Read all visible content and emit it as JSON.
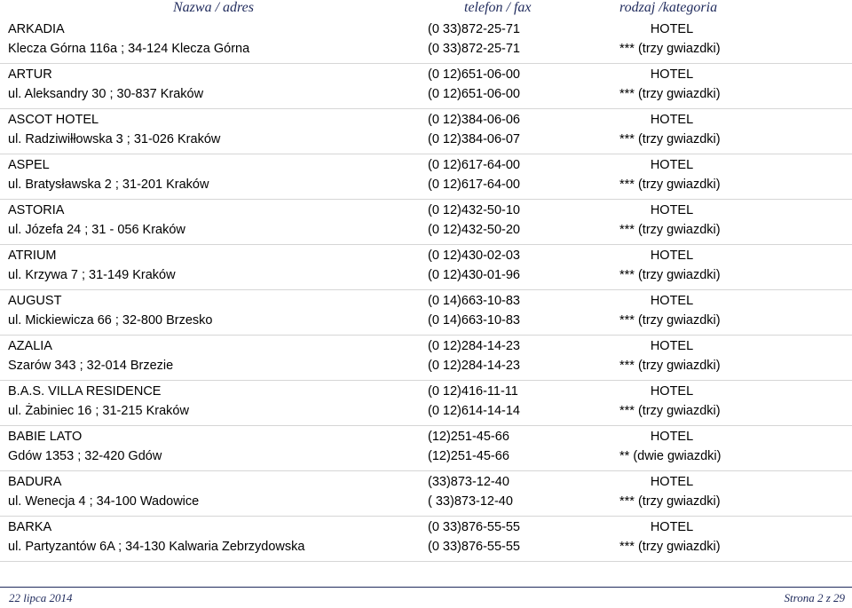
{
  "header": {
    "name": "Nazwa / adres",
    "phone": "telefon / fax",
    "category": "rodzaj /kategoria"
  },
  "entries": [
    {
      "name": "ARKADIA",
      "address": "Klecza Górna 116a ;  34-124 Klecza Górna",
      "phone": "(0 33)872-25-71",
      "fax": "(0 33)872-25-71",
      "type": "HOTEL",
      "category": "*** (trzy gwiazdki)"
    },
    {
      "name": "ARTUR",
      "address": "ul. Aleksandry 30 ;  30-837 Kraków",
      "phone": "(0 12)651-06-00",
      "fax": "(0 12)651-06-00",
      "type": "HOTEL",
      "category": "*** (trzy gwiazdki)"
    },
    {
      "name": "ASCOT HOTEL",
      "address": "ul. Radziwiłłowska 3 ;  31-026 Kraków",
      "phone": "(0 12)384-06-06",
      "fax": "(0 12)384-06-07",
      "type": "HOTEL",
      "category": "*** (trzy gwiazdki)"
    },
    {
      "name": "ASPEL",
      "address": "ul. Bratysławska 2 ;  31-201 Kraków",
      "phone": "(0 12)617-64-00",
      "fax": "(0 12)617-64-00",
      "type": "HOTEL",
      "category": "*** (trzy gwiazdki)"
    },
    {
      "name": "ASTORIA",
      "address": "ul. Józefa 24 ;  31 - 056 Kraków",
      "phone": "(0 12)432-50-10",
      "fax": "(0 12)432-50-20",
      "type": "HOTEL",
      "category": "*** (trzy gwiazdki)"
    },
    {
      "name": "ATRIUM",
      "address": "ul. Krzywa 7 ;  31-149 Kraków",
      "phone": "(0 12)430-02-03",
      "fax": "(0 12)430-01-96",
      "type": "HOTEL",
      "category": "*** (trzy gwiazdki)"
    },
    {
      "name": "AUGUST",
      "address": "ul. Mickiewicza 66 ;  32-800 Brzesko",
      "phone": "(0 14)663-10-83",
      "fax": "(0 14)663-10-83",
      "type": "HOTEL",
      "category": "*** (trzy gwiazdki)"
    },
    {
      "name": "AZALIA",
      "address": "Szarów 343 ;  32-014 Brzezie",
      "phone": "(0 12)284-14-23",
      "fax": "(0 12)284-14-23",
      "type": "HOTEL",
      "category": "*** (trzy gwiazdki)"
    },
    {
      "name": "B.A.S. VILLA RESIDENCE",
      "address": "ul. Żabiniec 16 ;  31-215 Kraków",
      "phone": "(0 12)416-11-11",
      "fax": "(0 12)614-14-14",
      "type": "HOTEL",
      "category": "*** (trzy gwiazdki)"
    },
    {
      "name": "BABIE LATO",
      "address": "Gdów 1353 ;  32-420 Gdów",
      "phone": "(12)251-45-66",
      "fax": "(12)251-45-66",
      "type": "HOTEL",
      "category": "** (dwie gwiazdki)"
    },
    {
      "name": "BADURA",
      "address": "ul. Wenecja 4 ;  34-100 Wadowice",
      "phone": "(33)873-12-40",
      "fax": "( 33)873-12-40",
      "type": "HOTEL",
      "category": "*** (trzy gwiazdki)"
    },
    {
      "name": "BARKA",
      "address": "ul. Partyzantów 6A ;  34-130 Kalwaria Zebrzydowska",
      "phone": "(0 33)876-55-55",
      "fax": "(0 33)876-55-55",
      "type": "HOTEL",
      "category": "*** (trzy gwiazdki)"
    }
  ],
  "footer": {
    "date": "22 lipca 2014",
    "page": "Strona 2 z 29"
  }
}
